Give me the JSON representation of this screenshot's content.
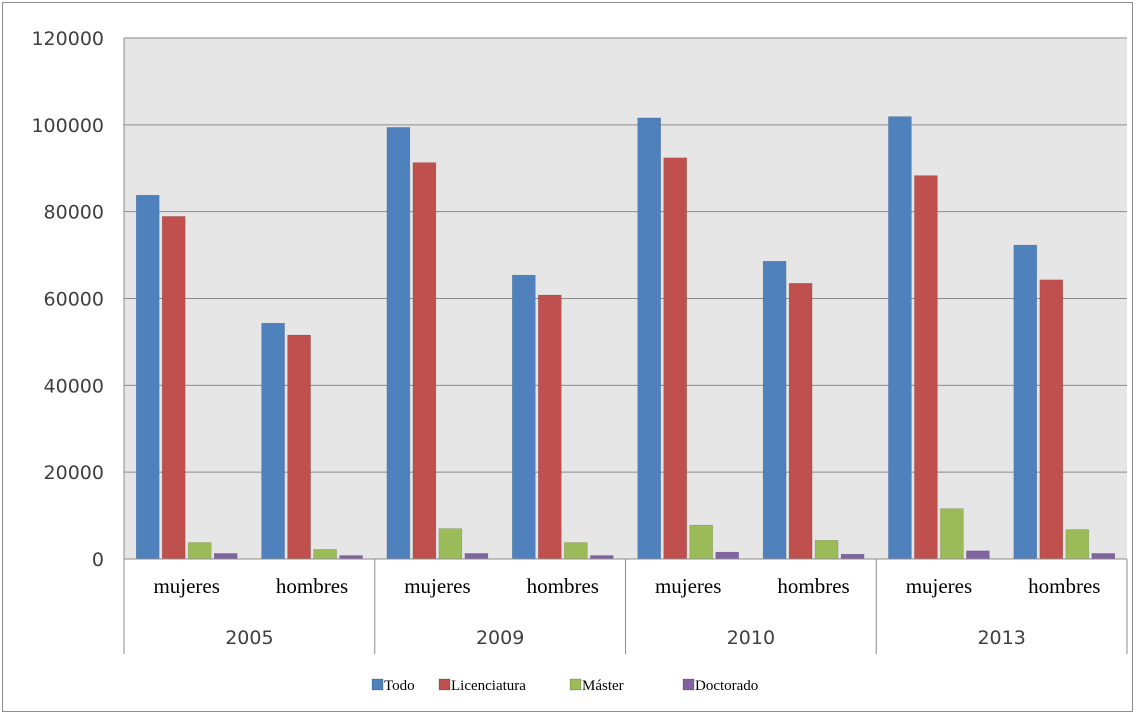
{
  "chart_data": {
    "type": "bar",
    "groups": [
      {
        "label": "2005",
        "categories": [
          "mujeres",
          "hombres"
        ]
      },
      {
        "label": "2009",
        "categories": [
          "mujeres",
          "hombres"
        ]
      },
      {
        "label": "2010",
        "categories": [
          "mujeres",
          "hombres"
        ]
      },
      {
        "label": "2013",
        "categories": [
          "mujeres",
          "hombres"
        ]
      }
    ],
    "series": [
      {
        "name": "Todo",
        "color": "#4f81bd",
        "values": [
          83800,
          54300,
          99400,
          65400,
          101600,
          68600,
          101900,
          72300
        ]
      },
      {
        "name": "Licenciatura",
        "color": "#c0504d",
        "values": [
          78900,
          51600,
          91300,
          60800,
          92400,
          63500,
          88300,
          64300
        ]
      },
      {
        "name": "Máster",
        "color": "#9bbb59",
        "values": [
          3800,
          2200,
          7000,
          3800,
          7800,
          4300,
          11600,
          6800
        ]
      },
      {
        "name": "Doctorado",
        "color": "#8064a2",
        "values": [
          1300,
          800,
          1300,
          800,
          1600,
          1100,
          1900,
          1300
        ]
      }
    ],
    "ylim": [
      0,
      120000
    ],
    "yticks": [
      "0",
      "20000",
      "40000",
      "60000",
      "80000",
      "100000",
      "120000"
    ],
    "grid": true,
    "legend_position": "bottom",
    "title": "",
    "xlabel": "",
    "ylabel": ""
  }
}
